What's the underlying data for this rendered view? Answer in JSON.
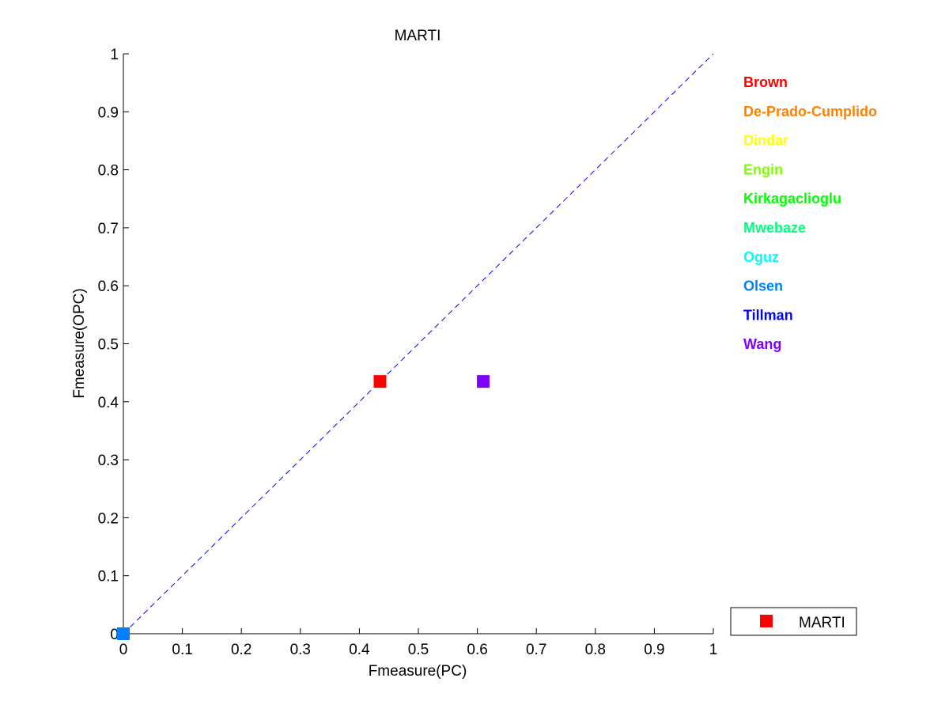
{
  "chart_data": {
    "type": "scatter",
    "title": "MARTI",
    "xlabel": "Fmeasure(PC)",
    "ylabel": "Fmeasure(OPC)",
    "xlim": [
      0,
      1
    ],
    "ylim": [
      0,
      1
    ],
    "xticks": [
      "0",
      "0.1",
      "0.2",
      "0.3",
      "0.4",
      "0.5",
      "0.6",
      "0.7",
      "0.8",
      "0.9",
      "1"
    ],
    "yticks": [
      "0",
      "0.1",
      "0.2",
      "0.3",
      "0.4",
      "0.5",
      "0.6",
      "0.7",
      "0.8",
      "0.9",
      "1"
    ],
    "grid": false,
    "reference_line": {
      "style": "dashed",
      "color": "#0000ff",
      "from": [
        0,
        0
      ],
      "to": [
        1,
        1
      ]
    },
    "labels": [
      {
        "name": "Brown",
        "color": "#ff0000"
      },
      {
        "name": "De-Prado-Cumplido",
        "color": "#ff8000"
      },
      {
        "name": "Dindar",
        "color": "#ffff00"
      },
      {
        "name": "Engin",
        "color": "#80ff00"
      },
      {
        "name": "Kirkagaclioglu",
        "color": "#00ff00"
      },
      {
        "name": "Mwebaze",
        "color": "#00ff80"
      },
      {
        "name": "Oguz",
        "color": "#00ffff"
      },
      {
        "name": "Olsen",
        "color": "#0080ff"
      },
      {
        "name": "Tillman",
        "color": "#0000ff"
      },
      {
        "name": "Wang",
        "color": "#8000ff"
      }
    ],
    "points": [
      {
        "label": "Brown",
        "x": 0.435,
        "y": 0.435,
        "color": "#ff0000",
        "marker": "square"
      },
      {
        "label": "Wang",
        "x": 0.61,
        "y": 0.435,
        "color": "#8000ff",
        "marker": "square"
      },
      {
        "label": "Olsen",
        "x": 0.0,
        "y": 0.0,
        "color": "#0080ff",
        "marker": "square"
      }
    ],
    "legend": {
      "placement": "bottom-right",
      "entries": [
        {
          "label": "MARTI",
          "color": "#ff0000",
          "marker": "square"
        }
      ]
    }
  }
}
